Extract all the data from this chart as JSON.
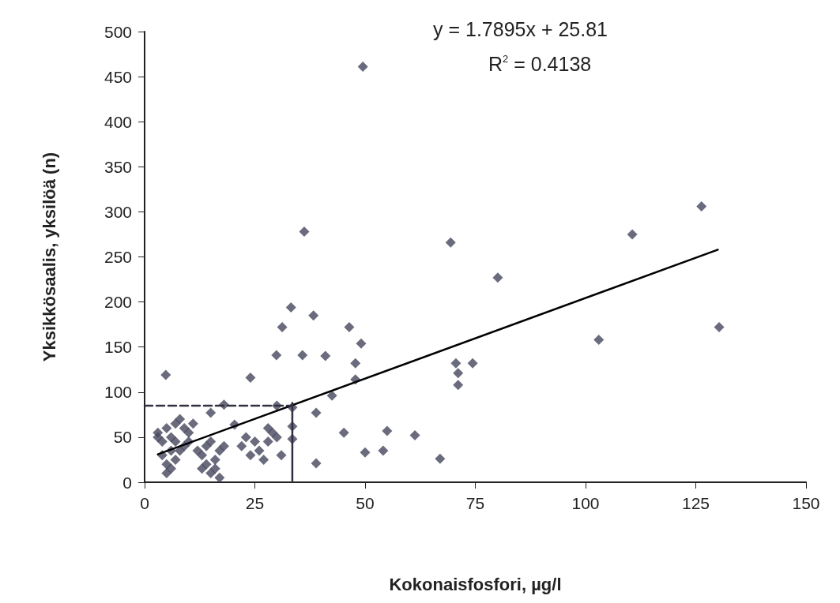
{
  "chart_data": {
    "type": "scatter",
    "xlabel": "Kokonaisfosfori, µg/l",
    "ylabel": "Yksikkösaalis, yksilöä (n)",
    "annotations": [
      "y = 1.7895x + 25.81",
      "R$^{2}$ = 0.4138"
    ],
    "xlim": [
      0,
      150
    ],
    "xticks": [
      0,
      25,
      50,
      75,
      100,
      125,
      150
    ],
    "ylim": [
      0,
      500
    ],
    "yticks": [
      0,
      50,
      100,
      150,
      200,
      250,
      300,
      350,
      400,
      450,
      500
    ],
    "grid": false,
    "marker": "diamond",
    "series": [
      {
        "color": "#46465e",
        "x": [
          49.5,
          36.2,
          69.4,
          80.1,
          33.2,
          38.3,
          31.2,
          46.4,
          49.1,
          126.3,
          110.6,
          103,
          130.3,
          41,
          47.8,
          47.8,
          42.5,
          38.9,
          45.2,
          50,
          54.1,
          55,
          61.3,
          67,
          70.6,
          71.1,
          71.1,
          74.4,
          38.9,
          4.8,
          24,
          29.9,
          35.8,
          33.5,
          33.5,
          33.5,
          15,
          18,
          20.4,
          3,
          4,
          5,
          6,
          7,
          8,
          9,
          10,
          4,
          5,
          6,
          7,
          8,
          9,
          5,
          6,
          10,
          11,
          3,
          7,
          13,
          14,
          15,
          16,
          17,
          14,
          15,
          16,
          18,
          13,
          17,
          12,
          22,
          24,
          26,
          28,
          29,
          30,
          27,
          25,
          31,
          23,
          28,
          30
        ],
        "values": [
          461,
          278,
          266,
          227,
          194,
          185,
          172,
          172,
          154,
          306,
          275,
          158,
          172,
          140,
          132,
          114,
          96,
          77,
          55,
          33,
          35,
          57,
          52,
          26,
          132,
          121,
          108,
          132,
          21,
          119,
          116,
          141,
          141,
          83,
          62,
          48,
          77,
          86,
          64,
          55,
          45,
          60,
          50,
          65,
          70,
          60,
          55,
          30,
          20,
          15,
          25,
          35,
          40,
          10,
          35,
          45,
          65,
          50,
          45,
          30,
          20,
          10,
          25,
          35,
          40,
          45,
          15,
          40,
          15,
          5,
          35,
          40,
          30,
          35,
          45,
          55,
          50,
          25,
          45,
          30,
          50,
          60,
          85
        ]
      },
      {
        "type": "line",
        "color": "#000000",
        "x": [
          3,
          130
        ],
        "values": [
          31,
          258
        ],
        "marker": "none",
        "line_style": "solid"
      },
      {
        "type": "line",
        "color": "#303040",
        "x": [
          0,
          33.5
        ],
        "values": [
          85,
          85
        ],
        "marker": "none",
        "line_style": "dashed"
      },
      {
        "type": "line",
        "color": "#303040",
        "x": [
          33.5,
          33.5
        ],
        "values": [
          0,
          88
        ],
        "marker": "none",
        "line_style": "solid"
      }
    ]
  }
}
